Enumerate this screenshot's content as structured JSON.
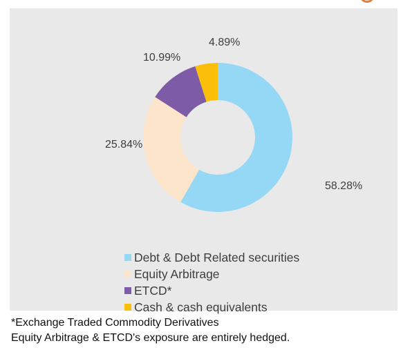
{
  "chart_data": {
    "type": "pie",
    "variant": "donut",
    "title": "",
    "categories": [
      "Debt & Debt Related securities",
      "Equity Arbitrage",
      "ETCD*",
      "Cash & cash equivalents"
    ],
    "values": [
      58.28,
      25.84,
      10.99,
      4.89
    ],
    "value_labels": [
      "58.28%",
      "25.84%",
      "10.99%",
      "4.89%"
    ],
    "colors": [
      "#95d8f5",
      "#fde5cc",
      "#7d5ba6",
      "#fbbf0a"
    ],
    "legend": {
      "position": "bottom"
    }
  },
  "footnotes": {
    "line1": "*Exchange Traded Commodity Derivatives",
    "line2": "Equity Arbitrage & ETCD's exposure are entirely hedged."
  }
}
